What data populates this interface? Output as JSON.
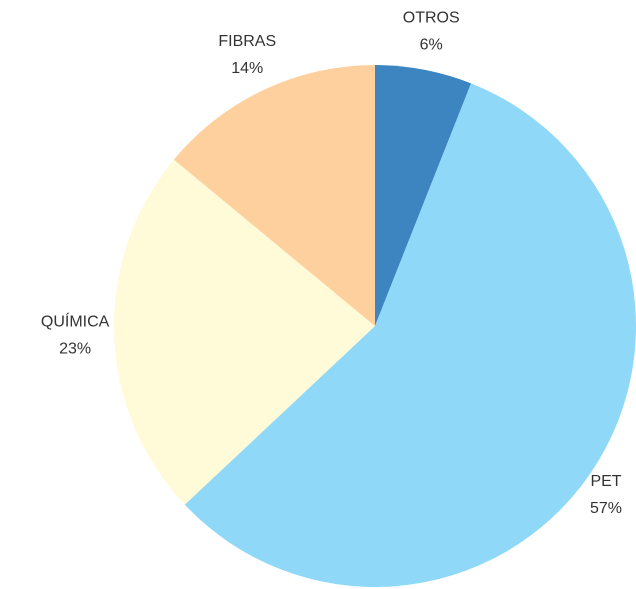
{
  "chart_data": {
    "type": "pie",
    "categories": [
      "OTROS",
      "PET",
      "QUÍMICA",
      "FIBRAS"
    ],
    "values": [
      6,
      57,
      23,
      14
    ],
    "value_labels": [
      "6%",
      "57%",
      "23%",
      "14%"
    ],
    "colors": [
      "#3d85c0",
      "#8fd8f8",
      "#fffad8",
      "#fdd09e"
    ]
  }
}
